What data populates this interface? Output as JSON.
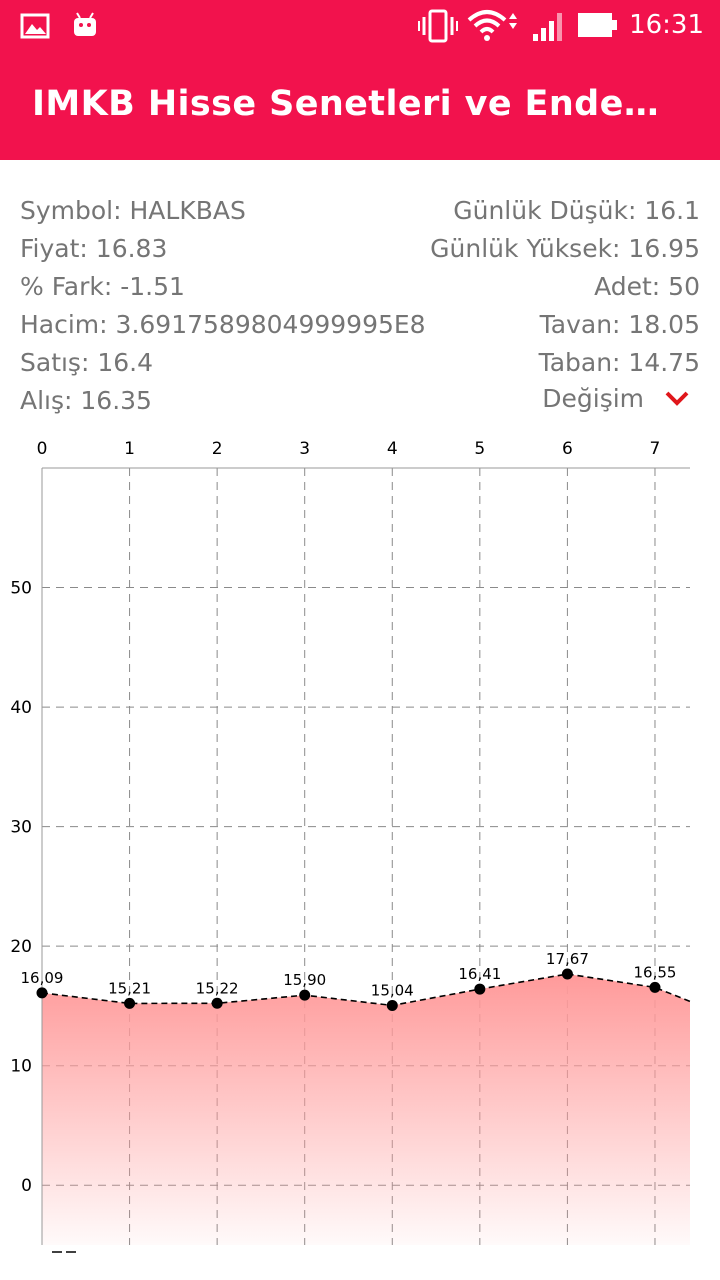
{
  "status_bar": {
    "time": "16:31",
    "icons": [
      "gallery-icon",
      "android-icon",
      "vibrate-icon",
      "wifi-icon",
      "signal-icon",
      "battery-icon"
    ]
  },
  "app_bar": {
    "title": "IMKB Hisse Senetleri ve Endeksl…",
    "color": "#f2124d"
  },
  "info": {
    "symbol": "Symbol: HALKBAS",
    "price": "Fiyat: 16.83",
    "diff": "% Fark: -1.51",
    "volume": "Hacim: 3.6917589804999995E8",
    "sell": "Satış: 16.4",
    "buy": "Alış: 16.35",
    "day_low": "Günlük Düşük: 16.1",
    "day_high": "Günlük Yüksek: 16.95",
    "count": "Adet: 50",
    "ceiling": "Tavan: 18.05",
    "floor": "Taban: 14.75"
  },
  "dropdown": {
    "label": "Değişim",
    "icon": "chevron-down-icon",
    "icon_color": "#e0161b"
  },
  "chart_data": {
    "type": "area",
    "x": [
      0,
      1,
      2,
      3,
      4,
      5,
      6,
      7
    ],
    "values": [
      16.09,
      15.21,
      15.22,
      15.9,
      15.04,
      16.41,
      17.67,
      16.55
    ],
    "point_labels": [
      "16,09",
      "15,21",
      "15,22",
      "15,90",
      "15,04",
      "16,41",
      "17,67",
      "16,55"
    ],
    "x_tick_labels": [
      "0",
      "1",
      "2",
      "3",
      "4",
      "5",
      "6",
      "7"
    ],
    "y_tick_values": [
      0,
      10,
      20,
      30,
      40,
      50
    ],
    "y_tick_labels": [
      "0",
      "10",
      "20",
      "30",
      "40",
      "50"
    ],
    "xlim": [
      0,
      7.4
    ],
    "ylim": [
      -5,
      60
    ],
    "x_axis_position": "top",
    "grid": true,
    "line_style": "dashed",
    "fill_color": "#ff9a9a"
  }
}
